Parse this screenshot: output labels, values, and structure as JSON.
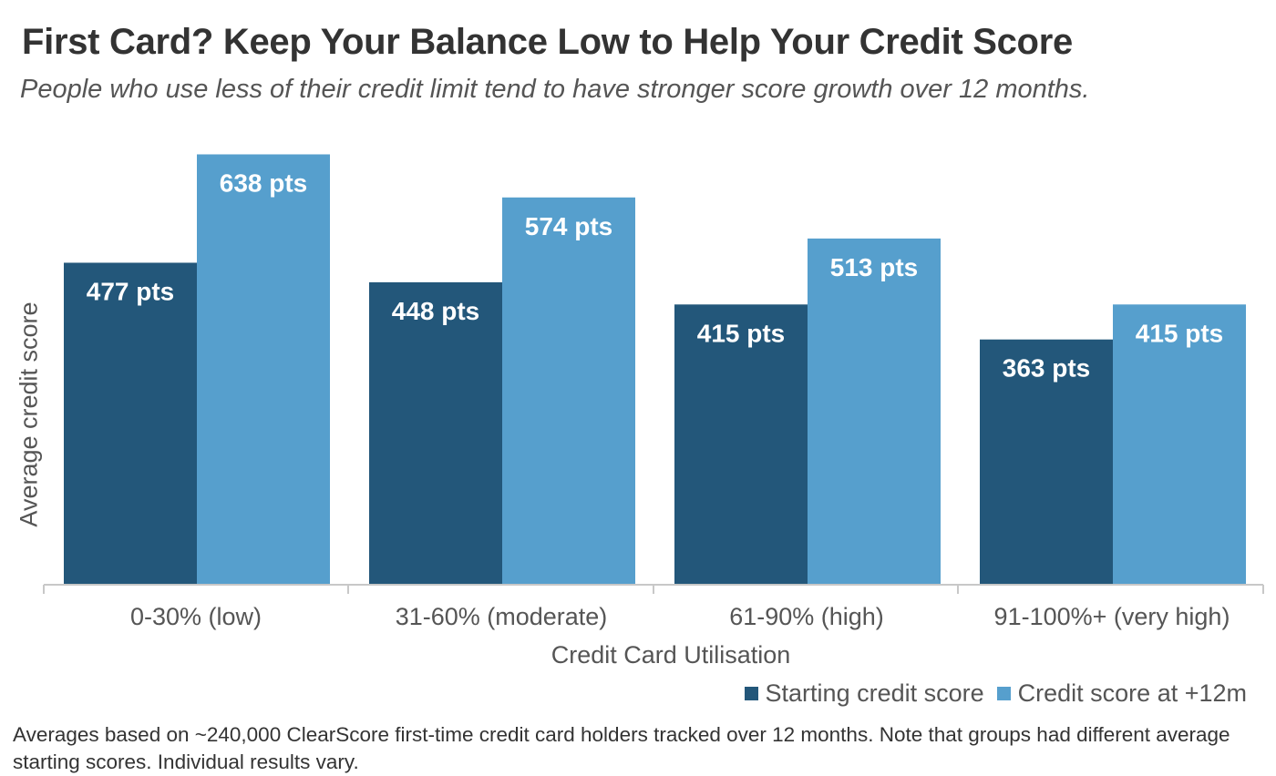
{
  "chart_data": {
    "type": "bar",
    "title": "First Card? Keep Your Balance Low to Help Your Credit Score",
    "subtitle": "People who use less of their credit limit tend to have stronger score growth over 12 months.",
    "xlabel": "Credit Card Utilisation",
    "ylabel": "Average credit score",
    "categories": [
      "0-30% (low)",
      "31-60% (moderate)",
      "61-90% (high)",
      "91-100%+ (very high)"
    ],
    "series": [
      {
        "name": "Starting credit score",
        "values": [
          477,
          448,
          415,
          363
        ],
        "labels": [
          "477 pts",
          "448 pts",
          "415 pts",
          "363 pts"
        ],
        "color": "#23577a"
      },
      {
        "name": "Credit score at +12m",
        "values": [
          638,
          574,
          513,
          415
        ],
        "labels": [
          "638 pts",
          "574 pts",
          "513 pts",
          "415 pts"
        ],
        "color": "#569fcd"
      }
    ],
    "ylim": [
      0,
      640
    ],
    "grid": false,
    "legend_position": "bottom-right",
    "footnote": "Averages based on ~240,000 ClearScore first-time credit card holders tracked over 12 months. Note that groups had different average starting scores. Individual results vary."
  }
}
